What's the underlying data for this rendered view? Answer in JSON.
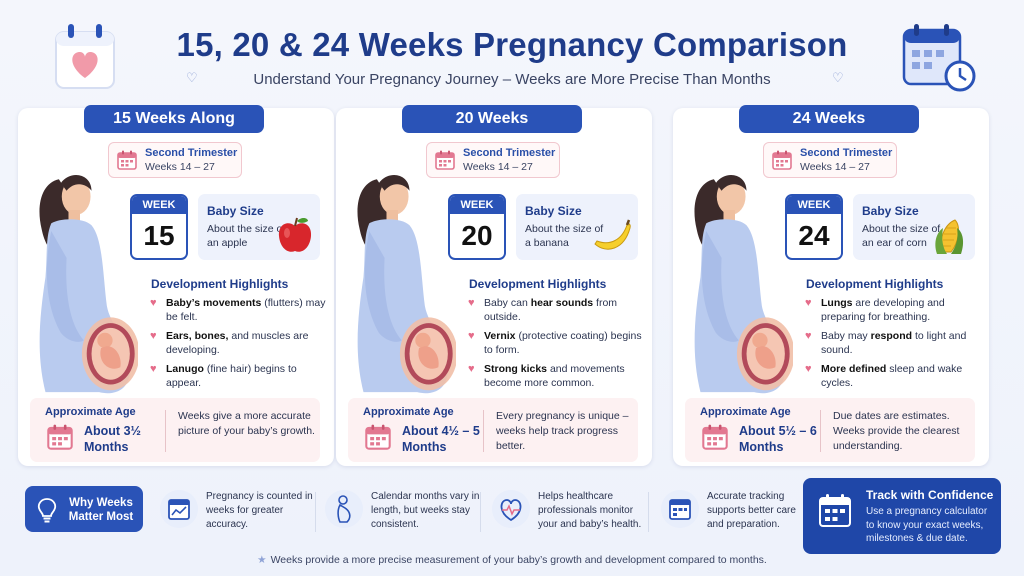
{
  "header": {
    "title": "15, 20 & 24 Weeks Pregnancy Comparison",
    "subtitle": "Understand Your Pregnancy Journey – Weeks are More Precise Than Months"
  },
  "colors": {
    "primary_blue": "#2a53b7",
    "dark_blue": "#1f3c8a",
    "pink_accent": "#e56c8a",
    "age_box_bg": "#fdf1f2",
    "size_box_bg": "#eef2fc"
  },
  "cards": [
    {
      "tab": "15 Weeks Along",
      "trimester_title": "Second Trimester",
      "trimester_weeks": "Weeks 14 – 27",
      "week_label": "WEEK",
      "week_number": "15",
      "size_title": "Baby Size",
      "size_line1": "About the size of",
      "size_line2": "an apple",
      "fruit_icon": "apple-icon",
      "dev_title": "Development Highlights",
      "highlights": [
        {
          "bold": "Baby’s movements",
          "rest": " (flutters) may be felt."
        },
        {
          "bold": "Ears, bones,",
          "rest": " and muscles are developing."
        },
        {
          "bold": "Lanugo",
          "rest": " (fine hair) begins to appear."
        }
      ],
      "age_label": "Approximate Age",
      "age_value1": "About 3½",
      "age_value2": "Months",
      "age_note": "Weeks give a more accurate picture of your baby’s growth."
    },
    {
      "tab": "20 Weeks",
      "trimester_title": "Second Trimester",
      "trimester_weeks": "Weeks 14 – 27",
      "week_label": "WEEK",
      "week_number": "20",
      "size_title": "Baby Size",
      "size_line1": "About the size of",
      "size_line2": "a banana",
      "fruit_icon": "banana-icon",
      "dev_title": "Development Highlights",
      "highlights": [
        {
          "bold": "",
          "pre": "Baby can ",
          "mid": "hear sounds",
          "rest": " from outside."
        },
        {
          "bold": "Vernix",
          "rest": " (protective coating) begins to form."
        },
        {
          "bold": "Strong kicks",
          "rest": " and movements become more common."
        }
      ],
      "age_label": "Approximate Age",
      "age_value1": "About 4½ – 5",
      "age_value2": "Months",
      "age_note": "Every pregnancy is unique – weeks help track progress better."
    },
    {
      "tab": "24 Weeks",
      "trimester_title": "Second Trimester",
      "trimester_weeks": "Weeks 14 – 27",
      "week_label": "WEEK",
      "week_number": "24",
      "size_title": "Baby Size",
      "size_line1": "About the size of",
      "size_line2": "an ear of corn",
      "fruit_icon": "corn-icon",
      "dev_title": "Development Highlights",
      "highlights": [
        {
          "bold": "Lungs",
          "rest": " are developing and preparing for breathing."
        },
        {
          "bold": "",
          "pre": "Baby may ",
          "mid": "respond",
          "rest": " to light and sound."
        },
        {
          "bold": "More defined",
          "rest": " sleep and wake cycles.",
          "tail_bold": "wake cycles."
        }
      ],
      "age_label": "Approximate Age",
      "age_value1": "About 5½ – 6",
      "age_value2": "Months",
      "age_note": "Due dates are estimates. Weeks provide the clearest understanding."
    }
  ],
  "why": {
    "label": "Why Weeks Matter Most",
    "facts": [
      {
        "icon": "calendar-chart-icon",
        "text": "Pregnancy is counted in weeks for greater accuracy."
      },
      {
        "icon": "pregnant-silhouette-icon",
        "text": "Calendar months vary in length, but weeks stay consistent."
      },
      {
        "icon": "heart-monitor-icon",
        "text": "Helps healthcare professionals monitor your and baby’s health."
      },
      {
        "icon": "calendar-icon",
        "text": "Accurate tracking supports better care and preparation."
      }
    ]
  },
  "track": {
    "title": "Track with Confidence",
    "desc": "Use a pregnancy calculator to know your exact weeks, milestones & due date."
  },
  "footnote": "Weeks provide a more precise measurement of your baby’s growth and development compared to months."
}
